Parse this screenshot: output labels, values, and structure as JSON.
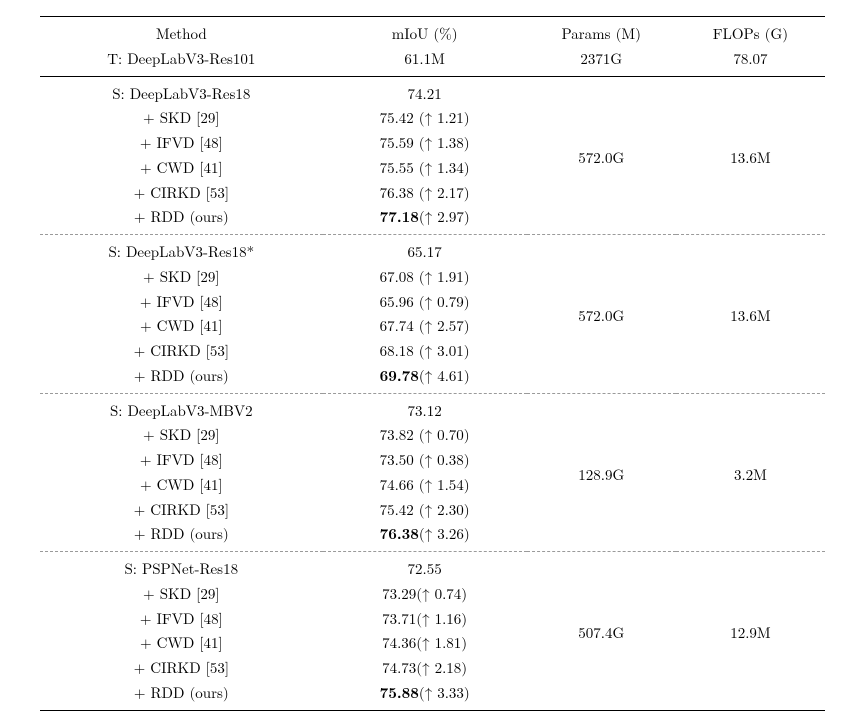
{
  "header": {
    "method": "Method",
    "miou": "mIoU (%)",
    "params": "Params (M)",
    "flops": "FLOPs (G)"
  },
  "teacher": {
    "label": "T: DeepLabV3-Res101",
    "miou": "61.1M",
    "params": "2371G",
    "flops": "78.07"
  },
  "groups": [
    {
      "params": "572.0G",
      "flops": "13.6M",
      "rows": [
        {
          "label": "S: DeepLabV3-Res18",
          "miou": "74.21",
          "bold": false
        },
        {
          "label": "+ SKD [29]",
          "miou": "75.42 (↑ 1.21)",
          "bold": false
        },
        {
          "label": "+ IFVD [48]",
          "miou": "75.59 (↑ 1.38)",
          "bold": false
        },
        {
          "label": "+ CWD [41]",
          "miou": "75.55 (↑ 1.34)",
          "bold": false
        },
        {
          "label": "+ CIRKD [53]",
          "miou": "76.38 (↑ 2.17)",
          "bold": false
        },
        {
          "label": "+ RDD (ours)",
          "miou": "77.18(↑ 2.97)",
          "bold": true
        }
      ],
      "border": "dashed"
    },
    {
      "params": "572.0G",
      "flops": "13.6M",
      "rows": [
        {
          "label": "S: DeepLabV3-Res18*",
          "miou": "65.17",
          "bold": false
        },
        {
          "label": "+ SKD [29]",
          "miou": "67.08 (↑ 1.91)",
          "bold": false
        },
        {
          "label": "+ IFVD [48]",
          "miou": "65.96 (↑ 0.79)",
          "bold": false
        },
        {
          "label": "+ CWD [41]",
          "miou": "67.74 (↑ 2.57)",
          "bold": false
        },
        {
          "label": "+ CIRKD [53]",
          "miou": "68.18 (↑ 3.01)",
          "bold": false
        },
        {
          "label": "+ RDD (ours)",
          "miou": "69.78(↑ 4.61)",
          "bold": true
        }
      ],
      "border": "dashed"
    },
    {
      "params": "128.9G",
      "flops": "3.2M",
      "rows": [
        {
          "label": "S: DeepLabV3-MBV2",
          "miou": "73.12",
          "bold": false
        },
        {
          "label": "+ SKD [29]",
          "miou": "73.82 (↑ 0.70)",
          "bold": false
        },
        {
          "label": "+ IFVD [48]",
          "miou": "73.50 (↑ 0.38)",
          "bold": false
        },
        {
          "label": "+ CWD [41]",
          "miou": "74.66 (↑ 1.54)",
          "bold": false
        },
        {
          "label": "+ CIRKD [53]",
          "miou": "75.42 (↑ 2.30)",
          "bold": false
        },
        {
          "label": "+ RDD (ours)",
          "miou": "76.38(↑ 3.26)",
          "bold": true
        }
      ],
      "border": "dashed"
    },
    {
      "params": "507.4G",
      "flops": "12.9M",
      "rows": [
        {
          "label": "S: PSPNet-Res18",
          "miou": "72.55",
          "bold": false
        },
        {
          "label": "+ SKD [29]",
          "miou": "73.29(↑ 0.74)",
          "bold": false
        },
        {
          "label": "+ IFVD [48]",
          "miou": "73.71(↑ 1.16)",
          "bold": false
        },
        {
          "label": "+ CWD [41]",
          "miou": "74.36(↑ 1.81)",
          "bold": false
        },
        {
          "label": "+ CIRKD [53]",
          "miou": "74.73(↑ 2.18)",
          "bold": false
        },
        {
          "label": "+ RDD (ours)",
          "miou": "75.88(↑ 3.33)",
          "bold": true
        }
      ],
      "border": "solid"
    }
  ],
  "style": {
    "background": "#ffffff",
    "text_color": "#000000",
    "rule_color": "#000000",
    "dash_color": "#9a9a9a",
    "font": "serif",
    "header_fontsize": 15,
    "body_fontsize": 15,
    "bold_weight": 700
  }
}
